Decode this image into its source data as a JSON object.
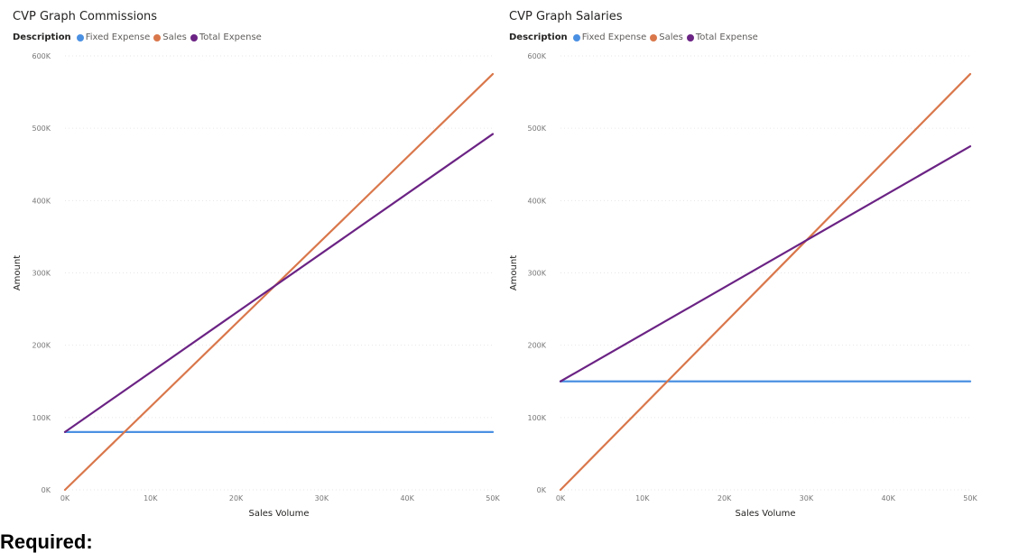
{
  "chart_data": [
    {
      "type": "line",
      "title": "CVP Graph Commissions",
      "legend_title": "Description",
      "xlabel": "Sales Volume",
      "ylabel": "Amount",
      "x_ticks": [
        "0K",
        "10K",
        "20K",
        "30K",
        "40K",
        "50K"
      ],
      "y_ticks": [
        "0K",
        "100K",
        "200K",
        "300K",
        "400K",
        "500K",
        "600K"
      ],
      "xlim": [
        0,
        50000
      ],
      "ylim": [
        0,
        600000
      ],
      "grid": true,
      "legend_position": "top-left",
      "series": [
        {
          "name": "Fixed Expense",
          "color": "#4a90e2",
          "x": [
            0,
            50000
          ],
          "values": [
            80000,
            80000
          ]
        },
        {
          "name": "Sales",
          "color": "#d9774b",
          "x": [
            0,
            50000
          ],
          "values": [
            0,
            575000
          ]
        },
        {
          "name": "Total Expense",
          "color": "#6b2384",
          "x": [
            0,
            50000
          ],
          "values": [
            80000,
            492000
          ]
        }
      ]
    },
    {
      "type": "line",
      "title": "CVP Graph Salaries",
      "legend_title": "Description",
      "xlabel": "Sales Volume",
      "ylabel": "Amount",
      "x_ticks": [
        "0K",
        "10K",
        "20K",
        "30K",
        "40K",
        "50K"
      ],
      "y_ticks": [
        "0K",
        "100K",
        "200K",
        "300K",
        "400K",
        "500K",
        "600K"
      ],
      "xlim": [
        0,
        50000
      ],
      "ylim": [
        0,
        600000
      ],
      "grid": true,
      "legend_position": "top-left",
      "series": [
        {
          "name": "Fixed Expense",
          "color": "#4a90e2",
          "x": [
            0,
            50000
          ],
          "values": [
            150000,
            150000
          ]
        },
        {
          "name": "Sales",
          "color": "#d9774b",
          "x": [
            0,
            50000
          ],
          "values": [
            0,
            575000
          ]
        },
        {
          "name": "Total Expense",
          "color": "#6b2384",
          "x": [
            0,
            50000
          ],
          "values": [
            150000,
            475000
          ]
        }
      ]
    }
  ],
  "footer": {
    "required_label": "Required:"
  }
}
